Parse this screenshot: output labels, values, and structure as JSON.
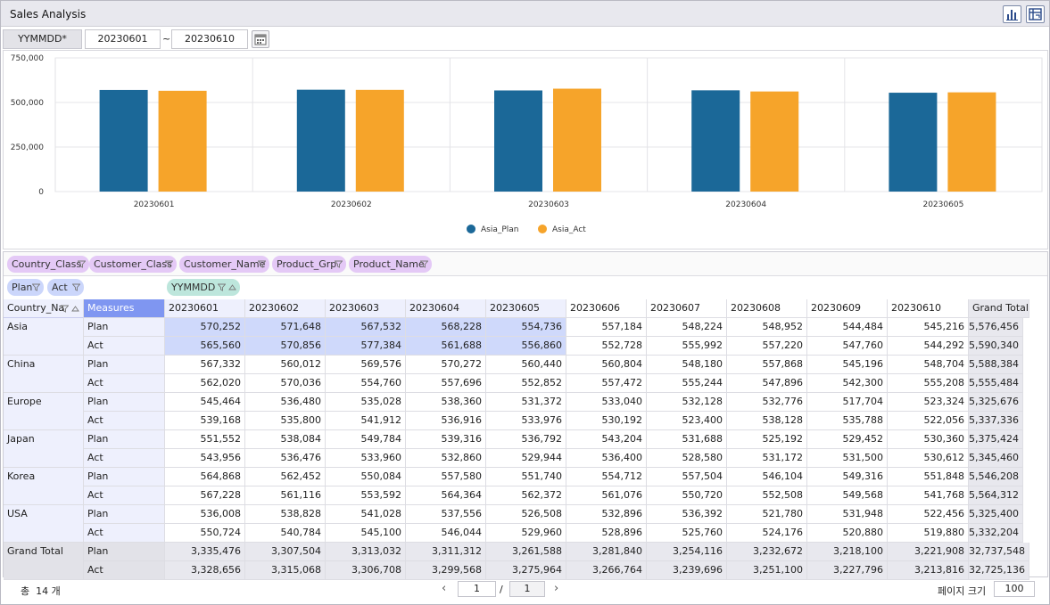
{
  "app": {
    "title": "Sales Analysis"
  },
  "toolbar": {
    "chart_icon": "bar-chart-icon",
    "pivot_icon": "pivot-table-icon"
  },
  "filter": {
    "label": "YYMMDD*",
    "from": "20230601",
    "tilde": "~",
    "to": "20230610",
    "calendar_icon": "calendar-icon"
  },
  "colors": {
    "plan": "#1b6898",
    "act": "#f6a42a",
    "selected": "#cfd9fb",
    "header_measures": "#7f96f1",
    "total_bg": "#e8e8ee",
    "label_col": "#eef0fd"
  },
  "chart_data": {
    "type": "bar",
    "categories": [
      "20230601",
      "20230602",
      "20230603",
      "20230604",
      "20230605"
    ],
    "series": [
      {
        "name": "Asia_Plan",
        "values": [
          570252,
          571648,
          567532,
          568228,
          554736
        ]
      },
      {
        "name": "Asia_Act",
        "values": [
          565560,
          570856,
          577384,
          561688,
          556860
        ]
      }
    ],
    "y_ticks": [
      "750,000",
      "500,000",
      "250,000",
      "0"
    ],
    "ylim": [
      0,
      750000
    ],
    "legend": "bottom-center",
    "grid": true
  },
  "pivot": {
    "filter_fields": [
      "Country_Class",
      "Customer_Class",
      "Customer_Name",
      "Product_Grp",
      "Product_Name"
    ],
    "data_fields": [
      "Plan",
      "Act"
    ],
    "column_field": "YYMMDD",
    "row_header": "Country_Na",
    "measures_header": "Measures",
    "columns": [
      "20230601",
      "20230602",
      "20230603",
      "20230604",
      "20230605",
      "20230606",
      "20230607",
      "20230608",
      "20230609",
      "20230610",
      "Grand Total"
    ],
    "rows": [
      {
        "country": "Asia",
        "plan": [
          "570,252",
          "571,648",
          "567,532",
          "568,228",
          "554,736",
          "557,184",
          "548,224",
          "548,952",
          "544,484",
          "545,216",
          "5,576,456"
        ],
        "act": [
          "565,560",
          "570,856",
          "577,384",
          "561,688",
          "556,860",
          "552,728",
          "555,992",
          "557,220",
          "547,760",
          "544,292",
          "5,590,340"
        ]
      },
      {
        "country": "China",
        "plan": [
          "567,332",
          "560,012",
          "569,576",
          "570,272",
          "560,440",
          "560,804",
          "548,180",
          "557,868",
          "545,196",
          "548,704",
          "5,588,384"
        ],
        "act": [
          "562,020",
          "570,036",
          "554,760",
          "557,696",
          "552,852",
          "557,472",
          "555,244",
          "547,896",
          "542,300",
          "555,208",
          "5,555,484"
        ]
      },
      {
        "country": "Europe",
        "plan": [
          "545,464",
          "536,480",
          "535,028",
          "538,360",
          "531,372",
          "533,040",
          "532,128",
          "532,776",
          "517,704",
          "523,324",
          "5,325,676"
        ],
        "act": [
          "539,168",
          "535,800",
          "541,912",
          "536,916",
          "533,976",
          "530,192",
          "523,400",
          "538,128",
          "535,788",
          "522,056",
          "5,337,336"
        ]
      },
      {
        "country": "Japan",
        "plan": [
          "551,552",
          "538,084",
          "549,784",
          "539,316",
          "536,792",
          "543,204",
          "531,688",
          "525,192",
          "529,452",
          "530,360",
          "5,375,424"
        ],
        "act": [
          "543,956",
          "536,476",
          "533,960",
          "532,860",
          "529,944",
          "536,400",
          "528,580",
          "531,172",
          "531,500",
          "530,612",
          "5,345,460"
        ]
      },
      {
        "country": "Korea",
        "plan": [
          "564,868",
          "562,452",
          "550,084",
          "557,580",
          "551,740",
          "554,712",
          "557,504",
          "546,104",
          "549,316",
          "551,848",
          "5,546,208"
        ],
        "act": [
          "567,228",
          "561,116",
          "553,592",
          "564,364",
          "562,372",
          "561,076",
          "550,720",
          "552,508",
          "549,568",
          "541,768",
          "5,564,312"
        ]
      },
      {
        "country": "USA",
        "plan": [
          "536,008",
          "538,828",
          "541,028",
          "537,556",
          "526,508",
          "532,896",
          "536,392",
          "521,780",
          "531,948",
          "522,456",
          "5,325,400"
        ],
        "act": [
          "550,724",
          "540,784",
          "545,100",
          "546,044",
          "529,960",
          "528,896",
          "525,760",
          "524,176",
          "520,880",
          "519,880",
          "5,332,204"
        ]
      }
    ],
    "grand_total": {
      "label": "Grand Total",
      "plan": [
        "3,335,476",
        "3,307,504",
        "3,313,032",
        "3,311,312",
        "3,261,588",
        "3,281,840",
        "3,254,116",
        "3,232,672",
        "3,218,100",
        "3,221,908",
        "32,737,548"
      ],
      "act": [
        "3,328,656",
        "3,315,068",
        "3,306,708",
        "3,299,568",
        "3,275,964",
        "3,266,764",
        "3,239,696",
        "3,251,100",
        "3,227,796",
        "3,213,816",
        "32,725,136"
      ]
    },
    "plan_label": "Plan",
    "act_label": "Act"
  },
  "footer": {
    "total_prefix": "총",
    "total_count": "14",
    "total_suffix": "개",
    "page_current": "1",
    "page_sep": "/",
    "page_total": "1",
    "page_size_label": "페이지 크기",
    "page_size": "100"
  }
}
